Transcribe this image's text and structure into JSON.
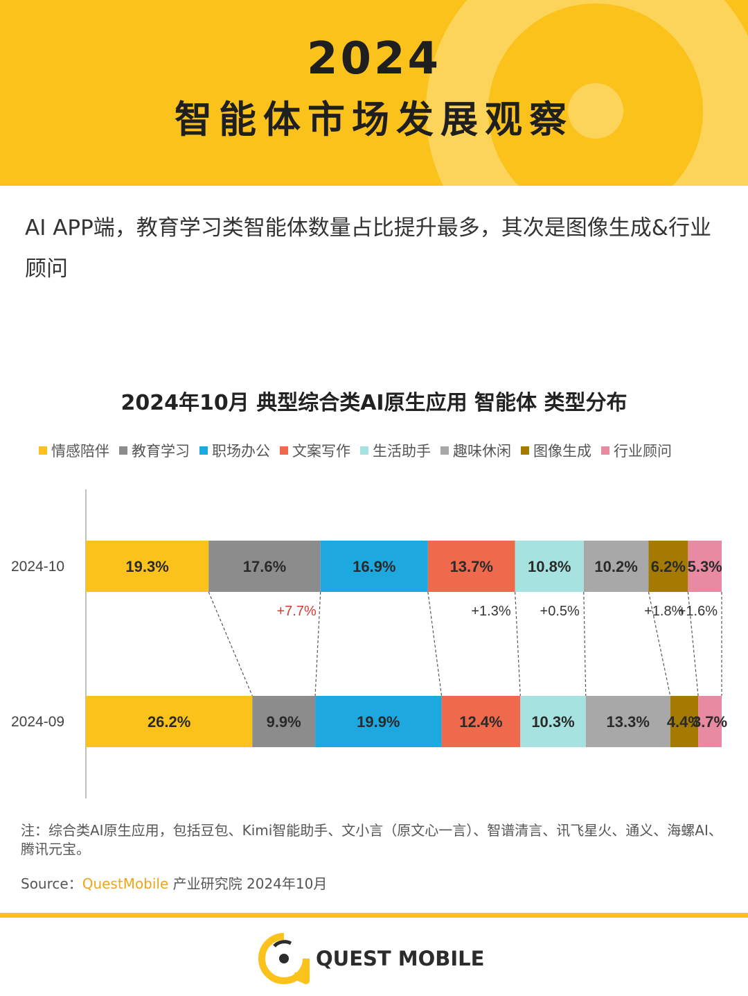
{
  "header": {
    "year": "2024",
    "title": "智能体市场发展观察"
  },
  "lead": "AI APP端，教育学习类智能体数量占比提升最多，其次是图像生成&行业顾问",
  "chart_data": {
    "type": "bar",
    "orientation": "horizontal-stacked-100",
    "title": "2024年10月 典型综合类AI原生应用 智能体 类型分布",
    "categories": [
      "2024-10",
      "2024-09"
    ],
    "series": [
      {
        "name": "情感陪伴",
        "color": "#fbc21c",
        "values": [
          19.3,
          26.2
        ],
        "labels": [
          "19.3%",
          "26.2%"
        ]
      },
      {
        "name": "教育学习",
        "color": "#8c8c8c",
        "values": [
          17.6,
          9.9
        ],
        "labels": [
          "17.6%",
          "9.9%"
        ]
      },
      {
        "name": "职场办公",
        "color": "#1ea8e0",
        "values": [
          16.9,
          19.9
        ],
        "labels": [
          "16.9%",
          "19.9%"
        ]
      },
      {
        "name": "文案写作",
        "color": "#ef6a4c",
        "values": [
          13.7,
          12.4
        ],
        "labels": [
          "13.7%",
          "12.4%"
        ]
      },
      {
        "name": "生活助手",
        "color": "#a6e2e0",
        "values": [
          10.8,
          10.3
        ],
        "labels": [
          "10.8%",
          "10.3%"
        ]
      },
      {
        "name": "趣味休闲",
        "color": "#a8a8a8",
        "values": [
          10.2,
          13.3
        ],
        "labels": [
          "10.2%",
          "13.3%"
        ]
      },
      {
        "name": "图像生成",
        "color": "#a47b00",
        "values": [
          6.2,
          4.4
        ],
        "labels": [
          "6.2%",
          "4.4%"
        ]
      },
      {
        "name": "行业顾问",
        "color": "#e98aa3",
        "values": [
          5.3,
          3.7
        ],
        "labels": [
          "5.3%",
          "3.7%"
        ]
      }
    ],
    "changes": [
      {
        "series": "教育学习",
        "text": "+7.7%",
        "color": "#d9382e"
      },
      {
        "series": "文案写作",
        "text": "+1.3%",
        "color": "#333333"
      },
      {
        "series": "生活助手",
        "text": "+0.5%",
        "color": "#333333"
      },
      {
        "series": "图像生成",
        "text": "+1.8%",
        "color": "#333333"
      },
      {
        "series": "行业顾问",
        "text": "+1.6%",
        "color": "#333333"
      }
    ]
  },
  "note": "注：综合类AI原生应用，包括豆包、Kimi智能助手、文小言（原文心一言）、智谱清言、讯飞星火、通义、海螺AI、腾讯元宝。",
  "source": {
    "prefix": "Source：",
    "brand": "QuestMobile",
    "suffix": " 产业研究院 2024年10月"
  },
  "footer": {
    "logo_text": "QUEST MOBILE"
  },
  "colors": {
    "accent": "#fbc21c"
  }
}
